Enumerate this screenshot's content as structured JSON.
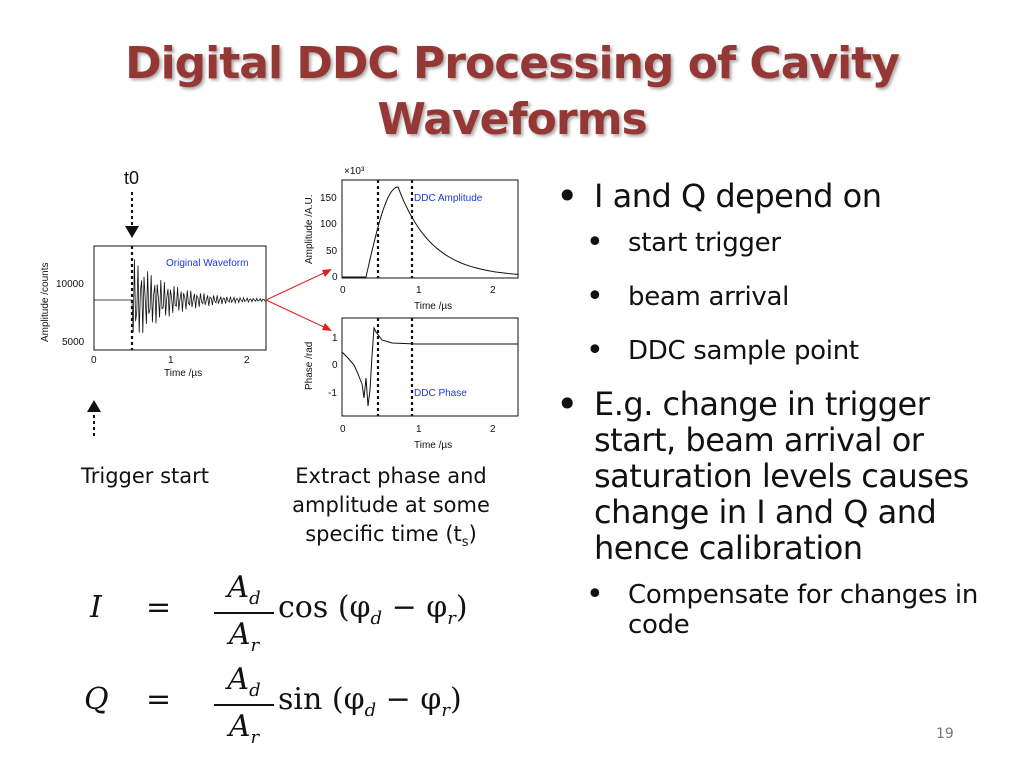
{
  "title": {
    "line1": "Digital DDC Processing of Cavity",
    "line2": "Waveforms"
  },
  "colors": {
    "title": "#953735",
    "plot_label": "#1a3bd6",
    "arrow": "#e02020"
  },
  "figure": {
    "t0_label": "t0",
    "original": {
      "label": "Original Waveform",
      "ylabel": "Amplitude /counts",
      "xlabel": "Time /µs",
      "yticks": [
        "10000",
        "5000"
      ],
      "xticks": [
        "0",
        "1",
        "2"
      ]
    },
    "amplitude": {
      "label": "DDC Amplitude",
      "ylabel": "Amplitude /A.U.",
      "xlabel": "Time /µs",
      "scale": "×10³",
      "yticks": [
        "150",
        "100",
        "50",
        "0"
      ],
      "xticks": [
        "0",
        "1",
        "2"
      ]
    },
    "phase": {
      "label": "DDC Phase",
      "ylabel": "Phase /rad",
      "xlabel": "Time /µs",
      "yticks": [
        "1",
        "0",
        "-1"
      ],
      "xticks": [
        "0",
        "1",
        "2"
      ]
    }
  },
  "captions": {
    "trigger": "Trigger start",
    "extract_line1": "Extract phase and",
    "extract_line2": "amplitude at some",
    "extract_line3": "specific time (t",
    "extract_sub": "s",
    "extract_end": ")"
  },
  "equations": {
    "i_lhs": "I",
    "q_lhs": "Q",
    "eq": "=",
    "num": "A",
    "num_sub": "d",
    "den": "A",
    "den_sub": "r",
    "cos": "cos",
    "sin": "sin",
    "arg": "(φ",
    "arg_sub1": "d",
    "minus": " − φ",
    "arg_sub2": "r",
    "close": ")"
  },
  "bullets": {
    "b1": "I and Q depend on",
    "sub1": [
      "start trigger",
      "beam arrival",
      "DDC sample point"
    ],
    "b2": "E.g. change in trigger start, beam arrival or saturation levels causes change in I and Q and hence calibration",
    "sub2": [
      "Compensate for changes in code"
    ]
  },
  "page_number": "19"
}
